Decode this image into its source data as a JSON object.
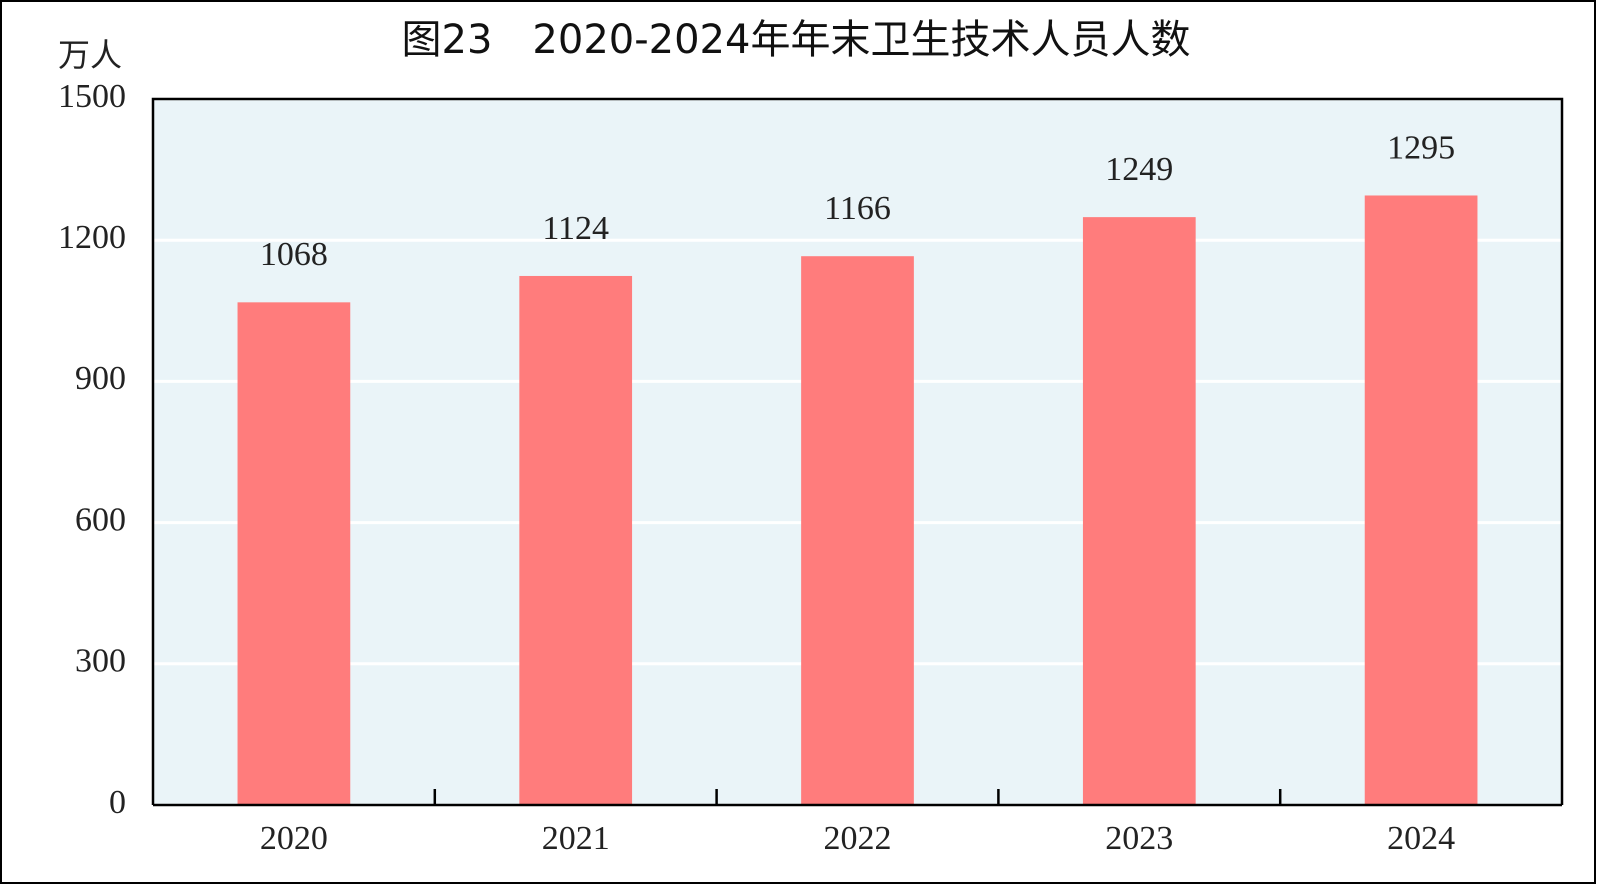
{
  "chart_data": {
    "type": "bar",
    "title": "图23　2020-2024年年末卫生技术人员人数",
    "y_label": "万人",
    "categories": [
      "2020",
      "2021",
      "2022",
      "2023",
      "2024"
    ],
    "values": [
      1068,
      1124,
      1166,
      1249,
      1295
    ],
    "color": "#ff7c7c",
    "ylim": [
      0,
      1500
    ],
    "yticks": [
      0,
      300,
      600,
      900,
      1200,
      1500
    ],
    "grid": true
  }
}
